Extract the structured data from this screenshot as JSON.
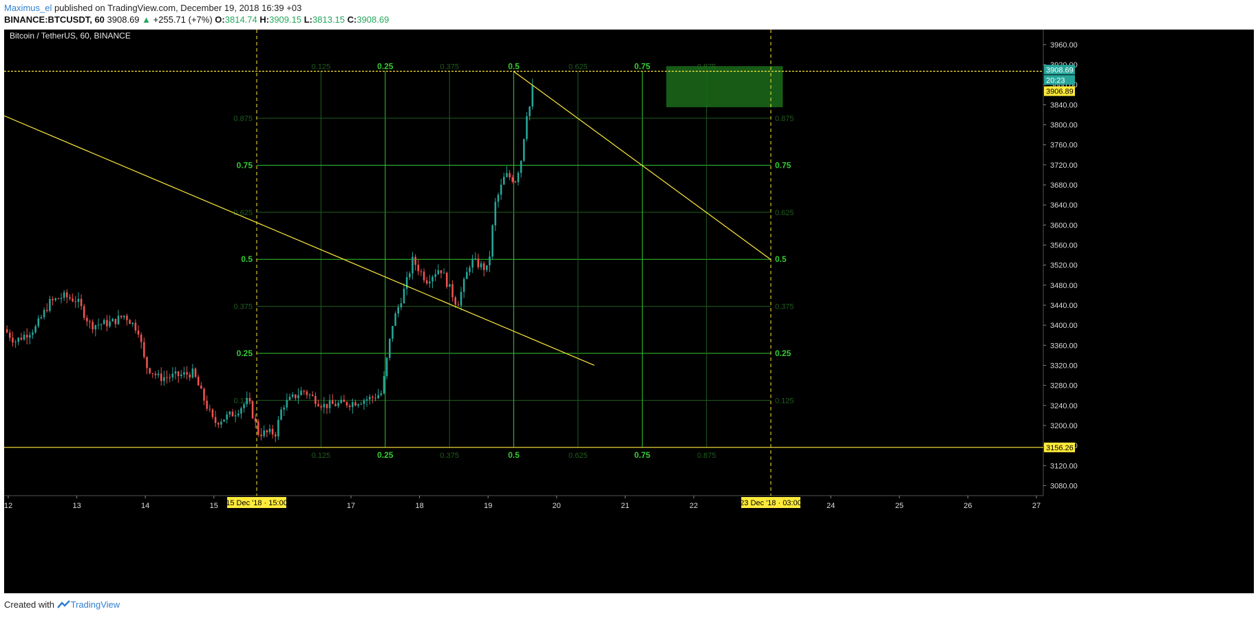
{
  "header": {
    "user": "Maximus_el",
    "published": "published on TradingView.com, December 19, 2018 16:39 +03",
    "symbol": "BINANCE:BTCUSDT, 60",
    "last": "3908.69",
    "change_arrow": "▲",
    "change": "+255.71 (+7%)",
    "o_label": "O:",
    "o_value": "3814.74",
    "h_label": "H:",
    "h_value": "3909.15",
    "l_label": "L:",
    "l_value": "3813.15",
    "c_label": "C:",
    "c_value": "3908.69"
  },
  "chart": {
    "title": "Bitcoin / TetherUS, 60, BINANCE",
    "price_ticks": [
      "3960.00",
      "3920.00",
      "3880.00",
      "3840.00",
      "3800.00",
      "3760.00",
      "3720.00",
      "3680.00",
      "3640.00",
      "3600.00",
      "3560.00",
      "3520.00",
      "3480.00",
      "3440.00",
      "3400.00",
      "3360.00",
      "3320.00",
      "3280.00",
      "3240.00",
      "3200.00",
      "3160.00",
      "3120.00",
      "3080.00"
    ],
    "price_tick_values": [
      3960,
      3920,
      3880,
      3840,
      3800,
      3760,
      3720,
      3680,
      3640,
      3600,
      3560,
      3520,
      3480,
      3440,
      3400,
      3360,
      3320,
      3280,
      3240,
      3200,
      3160,
      3120,
      3080
    ],
    "price_range": [
      3060,
      3990
    ],
    "time_ticks": [
      "12",
      "13",
      "14",
      "15",
      "17",
      "18",
      "19",
      "20",
      "21",
      "22",
      "24",
      "25",
      "26",
      "27"
    ],
    "time_tick_positions": [
      12,
      13,
      14,
      15,
      17,
      18,
      19,
      20,
      21,
      22,
      24,
      25,
      26,
      27
    ],
    "time_range": [
      11.94,
      27.1
    ],
    "last_price_badge": "3908.69",
    "countdown_badge": "20:23",
    "level_badge_top": "3906.89",
    "level_badge_bottom": "3156.26",
    "level_top": 3906.89,
    "level_bottom": 3156.26,
    "date_badge_left": "15 Dec '18 · 15:00",
    "date_badge_right": "23 Dec '18 · 03:00",
    "vline_left": 15.625,
    "vline_right": 23.125,
    "fib_levels": [
      {
        "value": 0.125,
        "major": false,
        "label": "0.125"
      },
      {
        "value": 0.25,
        "major": true,
        "label": "0.25"
      },
      {
        "value": 0.375,
        "major": false,
        "label": "0.375"
      },
      {
        "value": 0.5,
        "major": true,
        "label": "0.5"
      },
      {
        "value": 0.625,
        "major": false,
        "label": "0.625"
      },
      {
        "value": 0.75,
        "major": true,
        "label": "0.75"
      },
      {
        "value": 0.875,
        "major": false,
        "label": "0.875"
      }
    ],
    "target_box": {
      "x_from": 21.6,
      "x_to": 23.3,
      "price_from": 3835,
      "price_to": 3917
    },
    "trendline_long": {
      "x1": 11.94,
      "p1": 3818,
      "x2": 20.55,
      "p2": 3320
    },
    "trendline_short": {
      "x1": 19.37,
      "p1": 3906.89,
      "x2": 23.125,
      "p2": 3531
    },
    "colors": {
      "background": "#000000",
      "up": "#26a69a",
      "down": "#ef5350",
      "fib_major": "#33cc33",
      "fib_minor": "#1f5f1f",
      "yellow": "#ffeb3b",
      "target": "#1b6b1b"
    }
  },
  "candles_seed": {
    "anchors": [
      {
        "t": 11.94,
        "p": 3392
      },
      {
        "t": 12.1,
        "p": 3368
      },
      {
        "t": 12.4,
        "p": 3395
      },
      {
        "t": 12.6,
        "p": 3445
      },
      {
        "t": 12.8,
        "p": 3458
      },
      {
        "t": 13.0,
        "p": 3450
      },
      {
        "t": 13.2,
        "p": 3400
      },
      {
        "t": 13.5,
        "p": 3405
      },
      {
        "t": 13.7,
        "p": 3420
      },
      {
        "t": 13.9,
        "p": 3390
      },
      {
        "t": 14.0,
        "p": 3320
      },
      {
        "t": 14.2,
        "p": 3295
      },
      {
        "t": 14.5,
        "p": 3300
      },
      {
        "t": 14.7,
        "p": 3305
      },
      {
        "t": 14.8,
        "p": 3270
      },
      {
        "t": 15.0,
        "p": 3205
      },
      {
        "t": 15.3,
        "p": 3225
      },
      {
        "t": 15.5,
        "p": 3250
      },
      {
        "t": 15.65,
        "p": 3185
      },
      {
        "t": 15.9,
        "p": 3185
      },
      {
        "t": 16.0,
        "p": 3240
      },
      {
        "t": 16.3,
        "p": 3270
      },
      {
        "t": 16.6,
        "p": 3240
      },
      {
        "t": 17.0,
        "p": 3245
      },
      {
        "t": 17.3,
        "p": 3255
      },
      {
        "t": 17.45,
        "p": 3265
      },
      {
        "t": 17.6,
        "p": 3400
      },
      {
        "t": 17.8,
        "p": 3480
      },
      {
        "t": 17.9,
        "p": 3530
      },
      {
        "t": 18.1,
        "p": 3490
      },
      {
        "t": 18.3,
        "p": 3515
      },
      {
        "t": 18.55,
        "p": 3440
      },
      {
        "t": 18.75,
        "p": 3530
      },
      {
        "t": 19.0,
        "p": 3510
      },
      {
        "t": 19.1,
        "p": 3640
      },
      {
        "t": 19.25,
        "p": 3700
      },
      {
        "t": 19.4,
        "p": 3690
      },
      {
        "t": 19.5,
        "p": 3740
      },
      {
        "t": 19.55,
        "p": 3820
      },
      {
        "t": 19.62,
        "p": 3840
      },
      {
        "t": 19.68,
        "p": 3908.69
      }
    ]
  },
  "footer": {
    "created": "Created with",
    "brand": "TradingView"
  }
}
